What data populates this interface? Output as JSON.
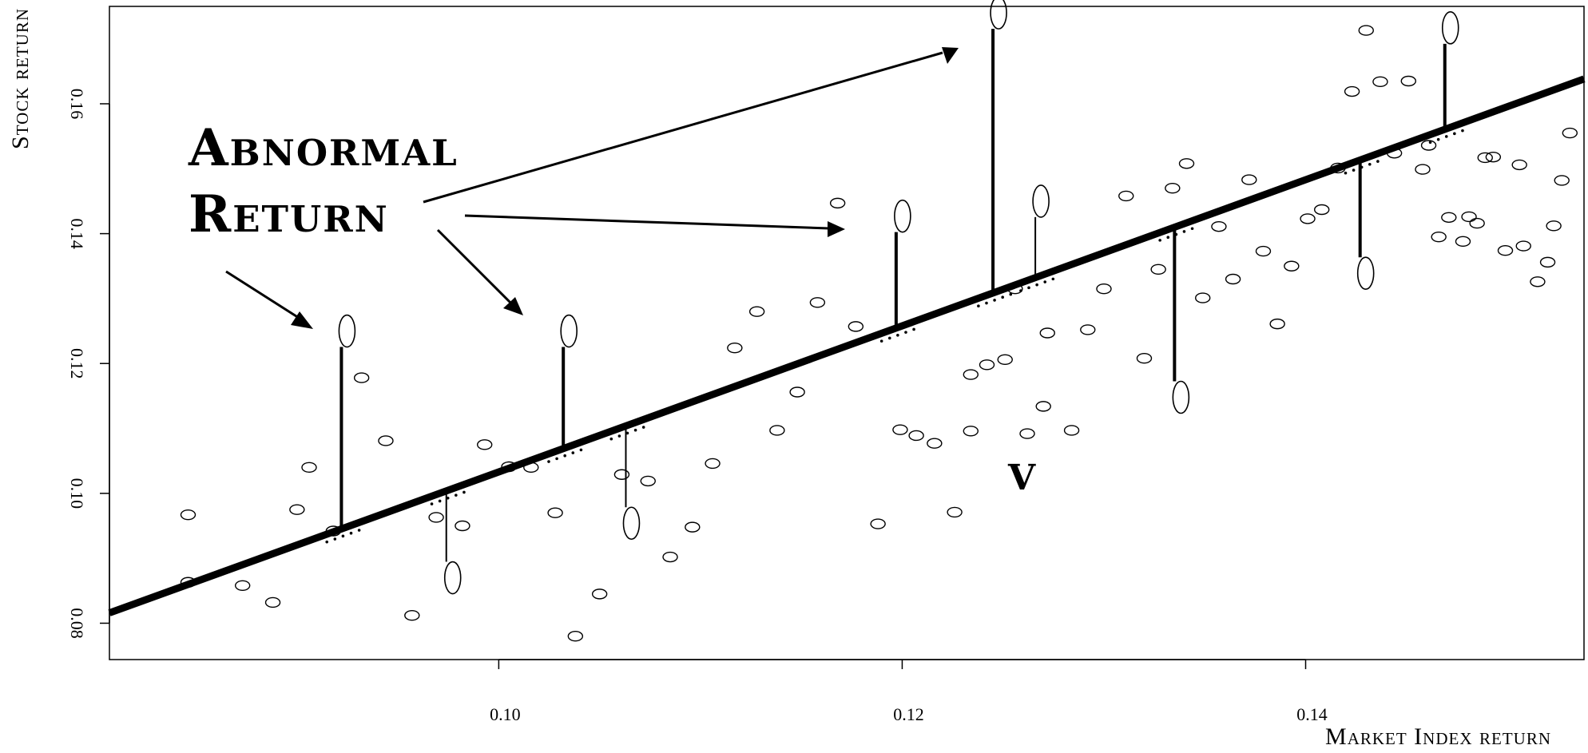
{
  "chart_data": {
    "type": "scatter",
    "xlabel": "Market Index return",
    "ylabel": "Stock return",
    "xlim": [
      0.0807,
      0.1538
    ],
    "ylim": [
      0.0744,
      0.175
    ],
    "x_ticks": [
      0.1,
      0.12,
      0.14
    ],
    "x_tick_labels": [
      "0.10",
      "0.12",
      "0.14"
    ],
    "y_ticks": [
      0.08,
      0.1,
      0.12,
      0.14,
      0.16
    ],
    "y_tick_labels": [
      "0.08",
      "0.10",
      "0.12",
      "0.14",
      "0.16"
    ],
    "grid": false,
    "regression_line": {
      "intercept": -0.0092,
      "slope": 1.125
    },
    "points": [
      [
        0.0846,
        0.0863
      ],
      [
        0.0846,
        0.0967
      ],
      [
        0.0873,
        0.0858
      ],
      [
        0.0888,
        0.0832
      ],
      [
        0.09,
        0.0975
      ],
      [
        0.0906,
        0.104
      ],
      [
        0.0918,
        0.0942
      ],
      [
        0.0932,
        0.1178
      ],
      [
        0.0944,
        0.1081
      ],
      [
        0.0957,
        0.0812
      ],
      [
        0.0969,
        0.0963
      ],
      [
        0.0982,
        0.095
      ],
      [
        0.0993,
        0.1075
      ],
      [
        0.1005,
        0.1041
      ],
      [
        0.1016,
        0.104
      ],
      [
        0.1028,
        0.097
      ],
      [
        0.1038,
        0.078
      ],
      [
        0.105,
        0.0845
      ],
      [
        0.1061,
        0.1029
      ],
      [
        0.1074,
        0.1019
      ],
      [
        0.1085,
        0.0902
      ],
      [
        0.1096,
        0.0948
      ],
      [
        0.1106,
        0.1046
      ],
      [
        0.1117,
        0.1224
      ],
      [
        0.1128,
        0.128
      ],
      [
        0.1138,
        0.1097
      ],
      [
        0.1148,
        0.1156
      ],
      [
        0.1158,
        0.1294
      ],
      [
        0.1168,
        0.1447
      ],
      [
        0.1177,
        0.1257
      ],
      [
        0.1188,
        0.0953
      ],
      [
        0.1199,
        0.1098
      ],
      [
        0.1207,
        0.1089
      ],
      [
        0.1216,
        0.1077
      ],
      [
        0.1226,
        0.0971
      ],
      [
        0.1234,
        0.1096
      ],
      [
        0.1234,
        0.1183
      ],
      [
        0.1242,
        0.1198
      ],
      [
        0.1251,
        0.1206
      ],
      [
        0.1256,
        0.1315
      ],
      [
        0.1262,
        0.1092
      ],
      [
        0.127,
        0.1134
      ],
      [
        0.1272,
        0.1247
      ],
      [
        0.1284,
        0.1097
      ],
      [
        0.1292,
        0.1252
      ],
      [
        0.13,
        0.1315
      ],
      [
        0.1311,
        0.1458
      ],
      [
        0.132,
        0.1208
      ],
      [
        0.1327,
        0.1345
      ],
      [
        0.1334,
        0.147
      ],
      [
        0.1341,
        0.1508
      ],
      [
        0.1349,
        0.1301
      ],
      [
        0.1357,
        0.1411
      ],
      [
        0.1364,
        0.133
      ],
      [
        0.1372,
        0.1483
      ],
      [
        0.1379,
        0.1373
      ],
      [
        0.1386,
        0.1261
      ],
      [
        0.1393,
        0.135
      ],
      [
        0.1401,
        0.1423
      ],
      [
        0.1408,
        0.1437
      ],
      [
        0.1416,
        0.1501
      ],
      [
        0.1423,
        0.1619
      ],
      [
        0.143,
        0.1713
      ],
      [
        0.1437,
        0.1634
      ],
      [
        0.1444,
        0.1524
      ],
      [
        0.1451,
        0.1635
      ],
      [
        0.1458,
        0.1499
      ],
      [
        0.1461,
        0.1536
      ],
      [
        0.1466,
        0.1395
      ],
      [
        0.1471,
        0.1425
      ],
      [
        0.1478,
        0.1388
      ],
      [
        0.1481,
        0.1426
      ],
      [
        0.1485,
        0.1416
      ],
      [
        0.1489,
        0.1517
      ],
      [
        0.1493,
        0.1518
      ],
      [
        0.1499,
        0.1374
      ],
      [
        0.1506,
        0.1506
      ],
      [
        0.1508,
        0.1381
      ],
      [
        0.1515,
        0.1326
      ],
      [
        0.152,
        0.1356
      ],
      [
        0.1523,
        0.1412
      ],
      [
        0.1527,
        0.1482
      ],
      [
        0.1531,
        0.1555
      ]
    ],
    "highlighted_residuals": [
      {
        "x": 0.0922,
        "y": 0.125,
        "fitted": 0.0945
      },
      {
        "x": 0.0974,
        "y": 0.087,
        "fitted": 0.1004
      },
      {
        "x": 0.1032,
        "y": 0.125,
        "fitted": 0.1069
      },
      {
        "x": 0.1063,
        "y": 0.0954,
        "fitted": 0.1103
      },
      {
        "x": 0.1197,
        "y": 0.1427,
        "fitted": 0.1254
      },
      {
        "x": 0.1245,
        "y": 0.174,
        "fitted": 0.1308
      },
      {
        "x": 0.1266,
        "y": 0.145,
        "fitted": 0.1332
      },
      {
        "x": 0.1335,
        "y": 0.1148,
        "fitted": 0.141
      },
      {
        "x": 0.1427,
        "y": 0.1339,
        "fitted": 0.1513
      },
      {
        "x": 0.1469,
        "y": 0.1717,
        "fitted": 0.156
      }
    ],
    "annotations": [
      {
        "text": "Abnormal",
        "id": "abnormal"
      },
      {
        "text": "Return",
        "id": "return"
      },
      {
        "text": "V",
        "id": "v-mark"
      }
    ]
  }
}
